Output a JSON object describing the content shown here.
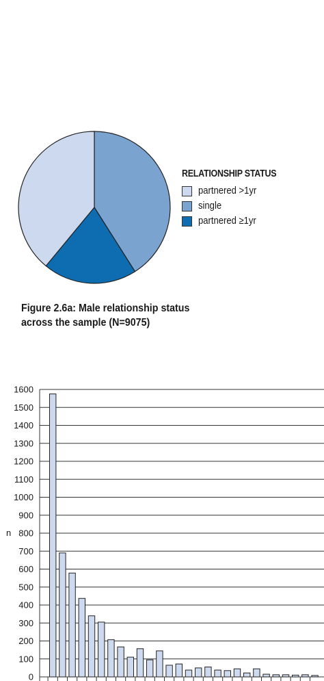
{
  "figure_caption_line1": "Figure 2.6a: Male relationship status",
  "figure_caption_line2": "across the sample (N=9075)",
  "chart_data": [
    {
      "type": "pie",
      "title": "",
      "legend_title": "RELATIONSHIP STATUS",
      "legend_placement": "right",
      "slices": [
        {
          "label": "partnered >1yr",
          "value": 39,
          "color": "#cdd9ee"
        },
        {
          "label": "single",
          "value": 41,
          "color": "#7aa3cf"
        },
        {
          "label": "partnered ≥1yr",
          "value": 20,
          "color": "#0e6db0"
        }
      ]
    },
    {
      "type": "bar",
      "title": "",
      "xlabel": "",
      "ylabel": "n",
      "ylim": [
        0,
        1600
      ],
      "yticks": [
        0,
        100,
        200,
        300,
        400,
        500,
        600,
        700,
        800,
        900,
        1000,
        1100,
        1200,
        1300,
        1400,
        1500,
        1600
      ],
      "grid": true,
      "bar_color": "#cdd9ee",
      "values": [
        1575,
        690,
        578,
        437,
        340,
        305,
        207,
        167,
        110,
        157,
        95,
        145,
        65,
        72,
        38,
        50,
        55,
        38,
        35,
        45,
        22,
        45,
        15,
        12,
        12,
        10,
        12,
        8
      ]
    }
  ]
}
